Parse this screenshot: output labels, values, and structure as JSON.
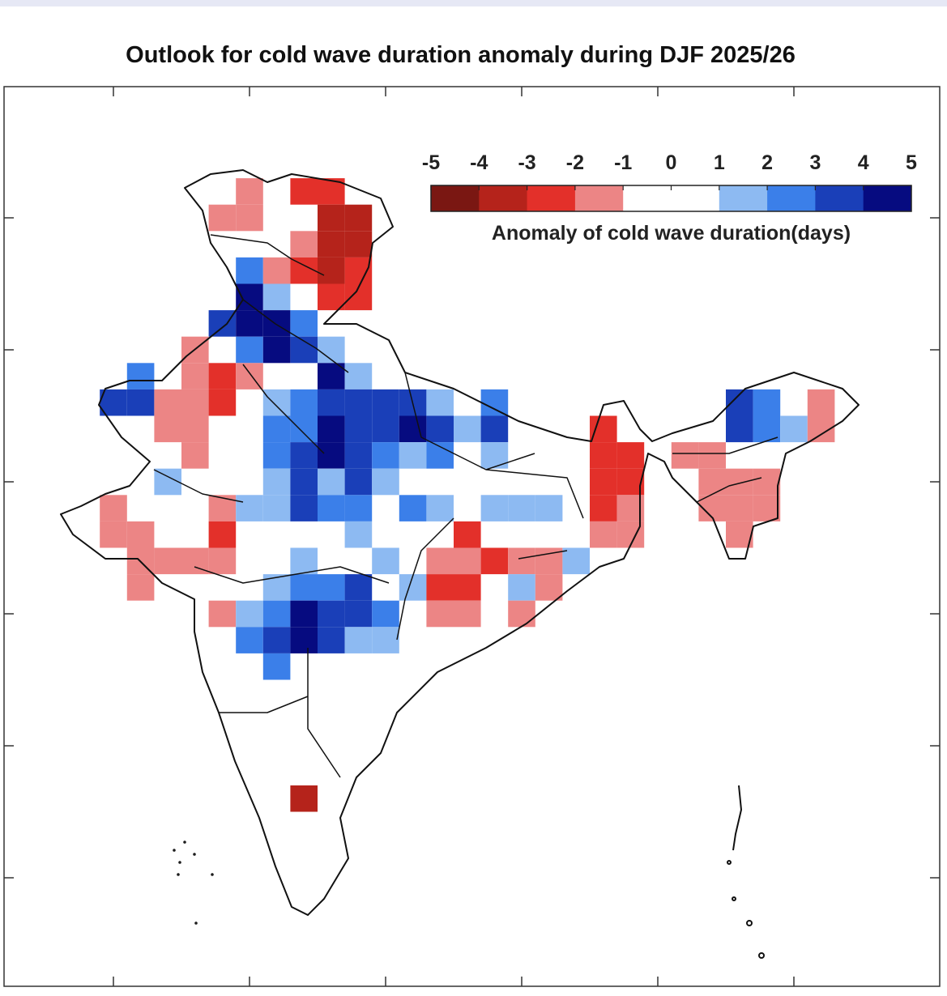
{
  "title": "Outlook for cold wave duration anomaly during DJF 2025/26",
  "legend": {
    "title": "Anomaly of cold wave duration(days)",
    "tick_labels": [
      "-5",
      "-4",
      "-3",
      "-2",
      "-1",
      "0",
      "1",
      "2",
      "3",
      "4",
      "5"
    ],
    "bins": [
      {
        "min": -5,
        "max": -4,
        "color": "#7a1712"
      },
      {
        "min": -4,
        "max": -3,
        "color": "#b5231b"
      },
      {
        "min": -3,
        "max": -2,
        "color": "#e3302a"
      },
      {
        "min": -2,
        "max": -1,
        "color": "#ec8585"
      },
      {
        "min": -1,
        "max": 0,
        "color": "#ffffff"
      },
      {
        "min": 0,
        "max": 1,
        "color": "#ffffff"
      },
      {
        "min": 1,
        "max": 2,
        "color": "#8dbaf2"
      },
      {
        "min": 2,
        "max": 3,
        "color": "#3b7fe9"
      },
      {
        "min": 3,
        "max": 4,
        "color": "#1a3fb8"
      },
      {
        "min": 4,
        "max": 5,
        "color": "#060b80"
      }
    ]
  },
  "map": {
    "region": "India",
    "grid_resolution_deg": 1,
    "lon_range": [
      68,
      98
    ],
    "lat_range": [
      6,
      38
    ],
    "lon_ticks": [
      70,
      75,
      80,
      85,
      90,
      95
    ],
    "lat_ticks": [
      35,
      30,
      25,
      20,
      15,
      10
    ],
    "tick_labels_shown": false,
    "cells_format": "[lon, lat, anomaly_days]",
    "cells": [
      [
        75,
        36,
        -1.5
      ],
      [
        77,
        36,
        -2.5
      ],
      [
        78,
        36,
        -2.5
      ],
      [
        74,
        35,
        -1.5
      ],
      [
        75,
        35,
        -1.5
      ],
      [
        78,
        35,
        -3.5
      ],
      [
        79,
        35,
        -3.5
      ],
      [
        77,
        34,
        -1.5
      ],
      [
        78,
        34,
        -3.5
      ],
      [
        79,
        34,
        -3.5
      ],
      [
        75,
        33,
        2.5
      ],
      [
        76,
        33,
        -1.5
      ],
      [
        77,
        33,
        -2.5
      ],
      [
        78,
        33,
        -3.5
      ],
      [
        79,
        33,
        -2.5
      ],
      [
        75,
        32,
        4.5
      ],
      [
        76,
        32,
        1.5
      ],
      [
        78,
        32,
        -2.5
      ],
      [
        79,
        32,
        -2.5
      ],
      [
        74,
        31,
        3.5
      ],
      [
        75,
        31,
        4.5
      ],
      [
        76,
        31,
        4.5
      ],
      [
        77,
        31,
        2.5
      ],
      [
        73,
        30,
        -1.5
      ],
      [
        75,
        30,
        2.5
      ],
      [
        76,
        30,
        4.5
      ],
      [
        77,
        30,
        3.5
      ],
      [
        78,
        30,
        1.5
      ],
      [
        71,
        29,
        2.5
      ],
      [
        73,
        29,
        -1.5
      ],
      [
        74,
        29,
        -2.5
      ],
      [
        75,
        29,
        -1.5
      ],
      [
        78,
        29,
        4.5
      ],
      [
        79,
        29,
        1.5
      ],
      [
        70,
        28,
        3.5
      ],
      [
        71,
        28,
        3.5
      ],
      [
        72,
        28,
        -1.5
      ],
      [
        73,
        28,
        -1.5
      ],
      [
        74,
        28,
        -2.5
      ],
      [
        76,
        28,
        1.5
      ],
      [
        77,
        28,
        2.5
      ],
      [
        78,
        28,
        3.5
      ],
      [
        79,
        28,
        3.5
      ],
      [
        80,
        28,
        3.5
      ],
      [
        81,
        28,
        3.5
      ],
      [
        82,
        28,
        1.5
      ],
      [
        84,
        28,
        2.5
      ],
      [
        93,
        28,
        3.5
      ],
      [
        94,
        28,
        2.5
      ],
      [
        96,
        28,
        -1.5
      ],
      [
        72,
        27,
        -1.5
      ],
      [
        73,
        27,
        -1.5
      ],
      [
        76,
        27,
        2.5
      ],
      [
        77,
        27,
        2.5
      ],
      [
        78,
        27,
        4.5
      ],
      [
        79,
        27,
        3.5
      ],
      [
        80,
        27,
        3.5
      ],
      [
        81,
        27,
        4.5
      ],
      [
        82,
        27,
        3.5
      ],
      [
        83,
        27,
        1.5
      ],
      [
        84,
        27,
        3.5
      ],
      [
        88,
        27,
        -2.5
      ],
      [
        93,
        27,
        3.5
      ],
      [
        94,
        27,
        2.5
      ],
      [
        95,
        27,
        1.5
      ],
      [
        96,
        27,
        -1.5
      ],
      [
        73,
        26,
        -1.5
      ],
      [
        76,
        26,
        2.5
      ],
      [
        77,
        26,
        3.5
      ],
      [
        78,
        26,
        4.5
      ],
      [
        79,
        26,
        3.5
      ],
      [
        80,
        26,
        2.5
      ],
      [
        81,
        26,
        1.5
      ],
      [
        82,
        26,
        2.5
      ],
      [
        84,
        26,
        1.5
      ],
      [
        88,
        26,
        -2.5
      ],
      [
        89,
        26,
        -2.5
      ],
      [
        91,
        26,
        -1.5
      ],
      [
        92,
        26,
        -1.5
      ],
      [
        72,
        25,
        1.5
      ],
      [
        76,
        25,
        1.5
      ],
      [
        77,
        25,
        3.5
      ],
      [
        78,
        25,
        1.5
      ],
      [
        79,
        25,
        3.5
      ],
      [
        80,
        25,
        1.5
      ],
      [
        88,
        25,
        -2.5
      ],
      [
        89,
        25,
        -2.5
      ],
      [
        92,
        25,
        -1.5
      ],
      [
        93,
        25,
        -1.5
      ],
      [
        94,
        25,
        -1.5
      ],
      [
        70,
        24,
        -1.5
      ],
      [
        74,
        24,
        -1.5
      ],
      [
        75,
        24,
        1.5
      ],
      [
        76,
        24,
        1.5
      ],
      [
        77,
        24,
        3.5
      ],
      [
        78,
        24,
        2.5
      ],
      [
        79,
        24,
        2.5
      ],
      [
        81,
        24,
        2.5
      ],
      [
        82,
        24,
        1.5
      ],
      [
        84,
        24,
        1.5
      ],
      [
        85,
        24,
        1.5
      ],
      [
        86,
        24,
        1.5
      ],
      [
        88,
        24,
        -2.5
      ],
      [
        89,
        24,
        -1.5
      ],
      [
        92,
        24,
        -1.5
      ],
      [
        93,
        24,
        -1.5
      ],
      [
        94,
        24,
        -1.5
      ],
      [
        70,
        23,
        -1.5
      ],
      [
        71,
        23,
        -1.5
      ],
      [
        74,
        23,
        -2.5
      ],
      [
        79,
        23,
        1.5
      ],
      [
        83,
        23,
        -2.5
      ],
      [
        88,
        23,
        -1.5
      ],
      [
        89,
        23,
        -1.5
      ],
      [
        93,
        23,
        -1.5
      ],
      [
        71,
        22,
        -1.5
      ],
      [
        72,
        22,
        -1.5
      ],
      [
        73,
        22,
        -1.5
      ],
      [
        74,
        22,
        -1.5
      ],
      [
        77,
        22,
        1.5
      ],
      [
        80,
        22,
        1.5
      ],
      [
        82,
        22,
        -1.5
      ],
      [
        83,
        22,
        -1.5
      ],
      [
        84,
        22,
        -2.5
      ],
      [
        85,
        22,
        -1.5
      ],
      [
        86,
        22,
        -1.5
      ],
      [
        87,
        22,
        1.5
      ],
      [
        71,
        21,
        -1.5
      ],
      [
        76,
        21,
        1.5
      ],
      [
        77,
        21,
        2.5
      ],
      [
        78,
        21,
        2.5
      ],
      [
        79,
        21,
        3.5
      ],
      [
        81,
        21,
        1.5
      ],
      [
        82,
        21,
        -2.5
      ],
      [
        83,
        21,
        -2.5
      ],
      [
        85,
        21,
        1.5
      ],
      [
        86,
        21,
        -1.5
      ],
      [
        74,
        20,
        -1.5
      ],
      [
        75,
        20,
        1.5
      ],
      [
        76,
        20,
        2.5
      ],
      [
        77,
        20,
        4.5
      ],
      [
        78,
        20,
        3.5
      ],
      [
        79,
        20,
        3.5
      ],
      [
        80,
        20,
        2.5
      ],
      [
        82,
        20,
        -1.5
      ],
      [
        83,
        20,
        -1.5
      ],
      [
        85,
        20,
        -1.5
      ],
      [
        75,
        19,
        2.5
      ],
      [
        76,
        19,
        3.5
      ],
      [
        77,
        19,
        4.5
      ],
      [
        78,
        19,
        3.5
      ],
      [
        79,
        19,
        1.5
      ],
      [
        80,
        19,
        1.5
      ],
      [
        76,
        18,
        2.5
      ],
      [
        77,
        13,
        -3.5
      ]
    ]
  }
}
